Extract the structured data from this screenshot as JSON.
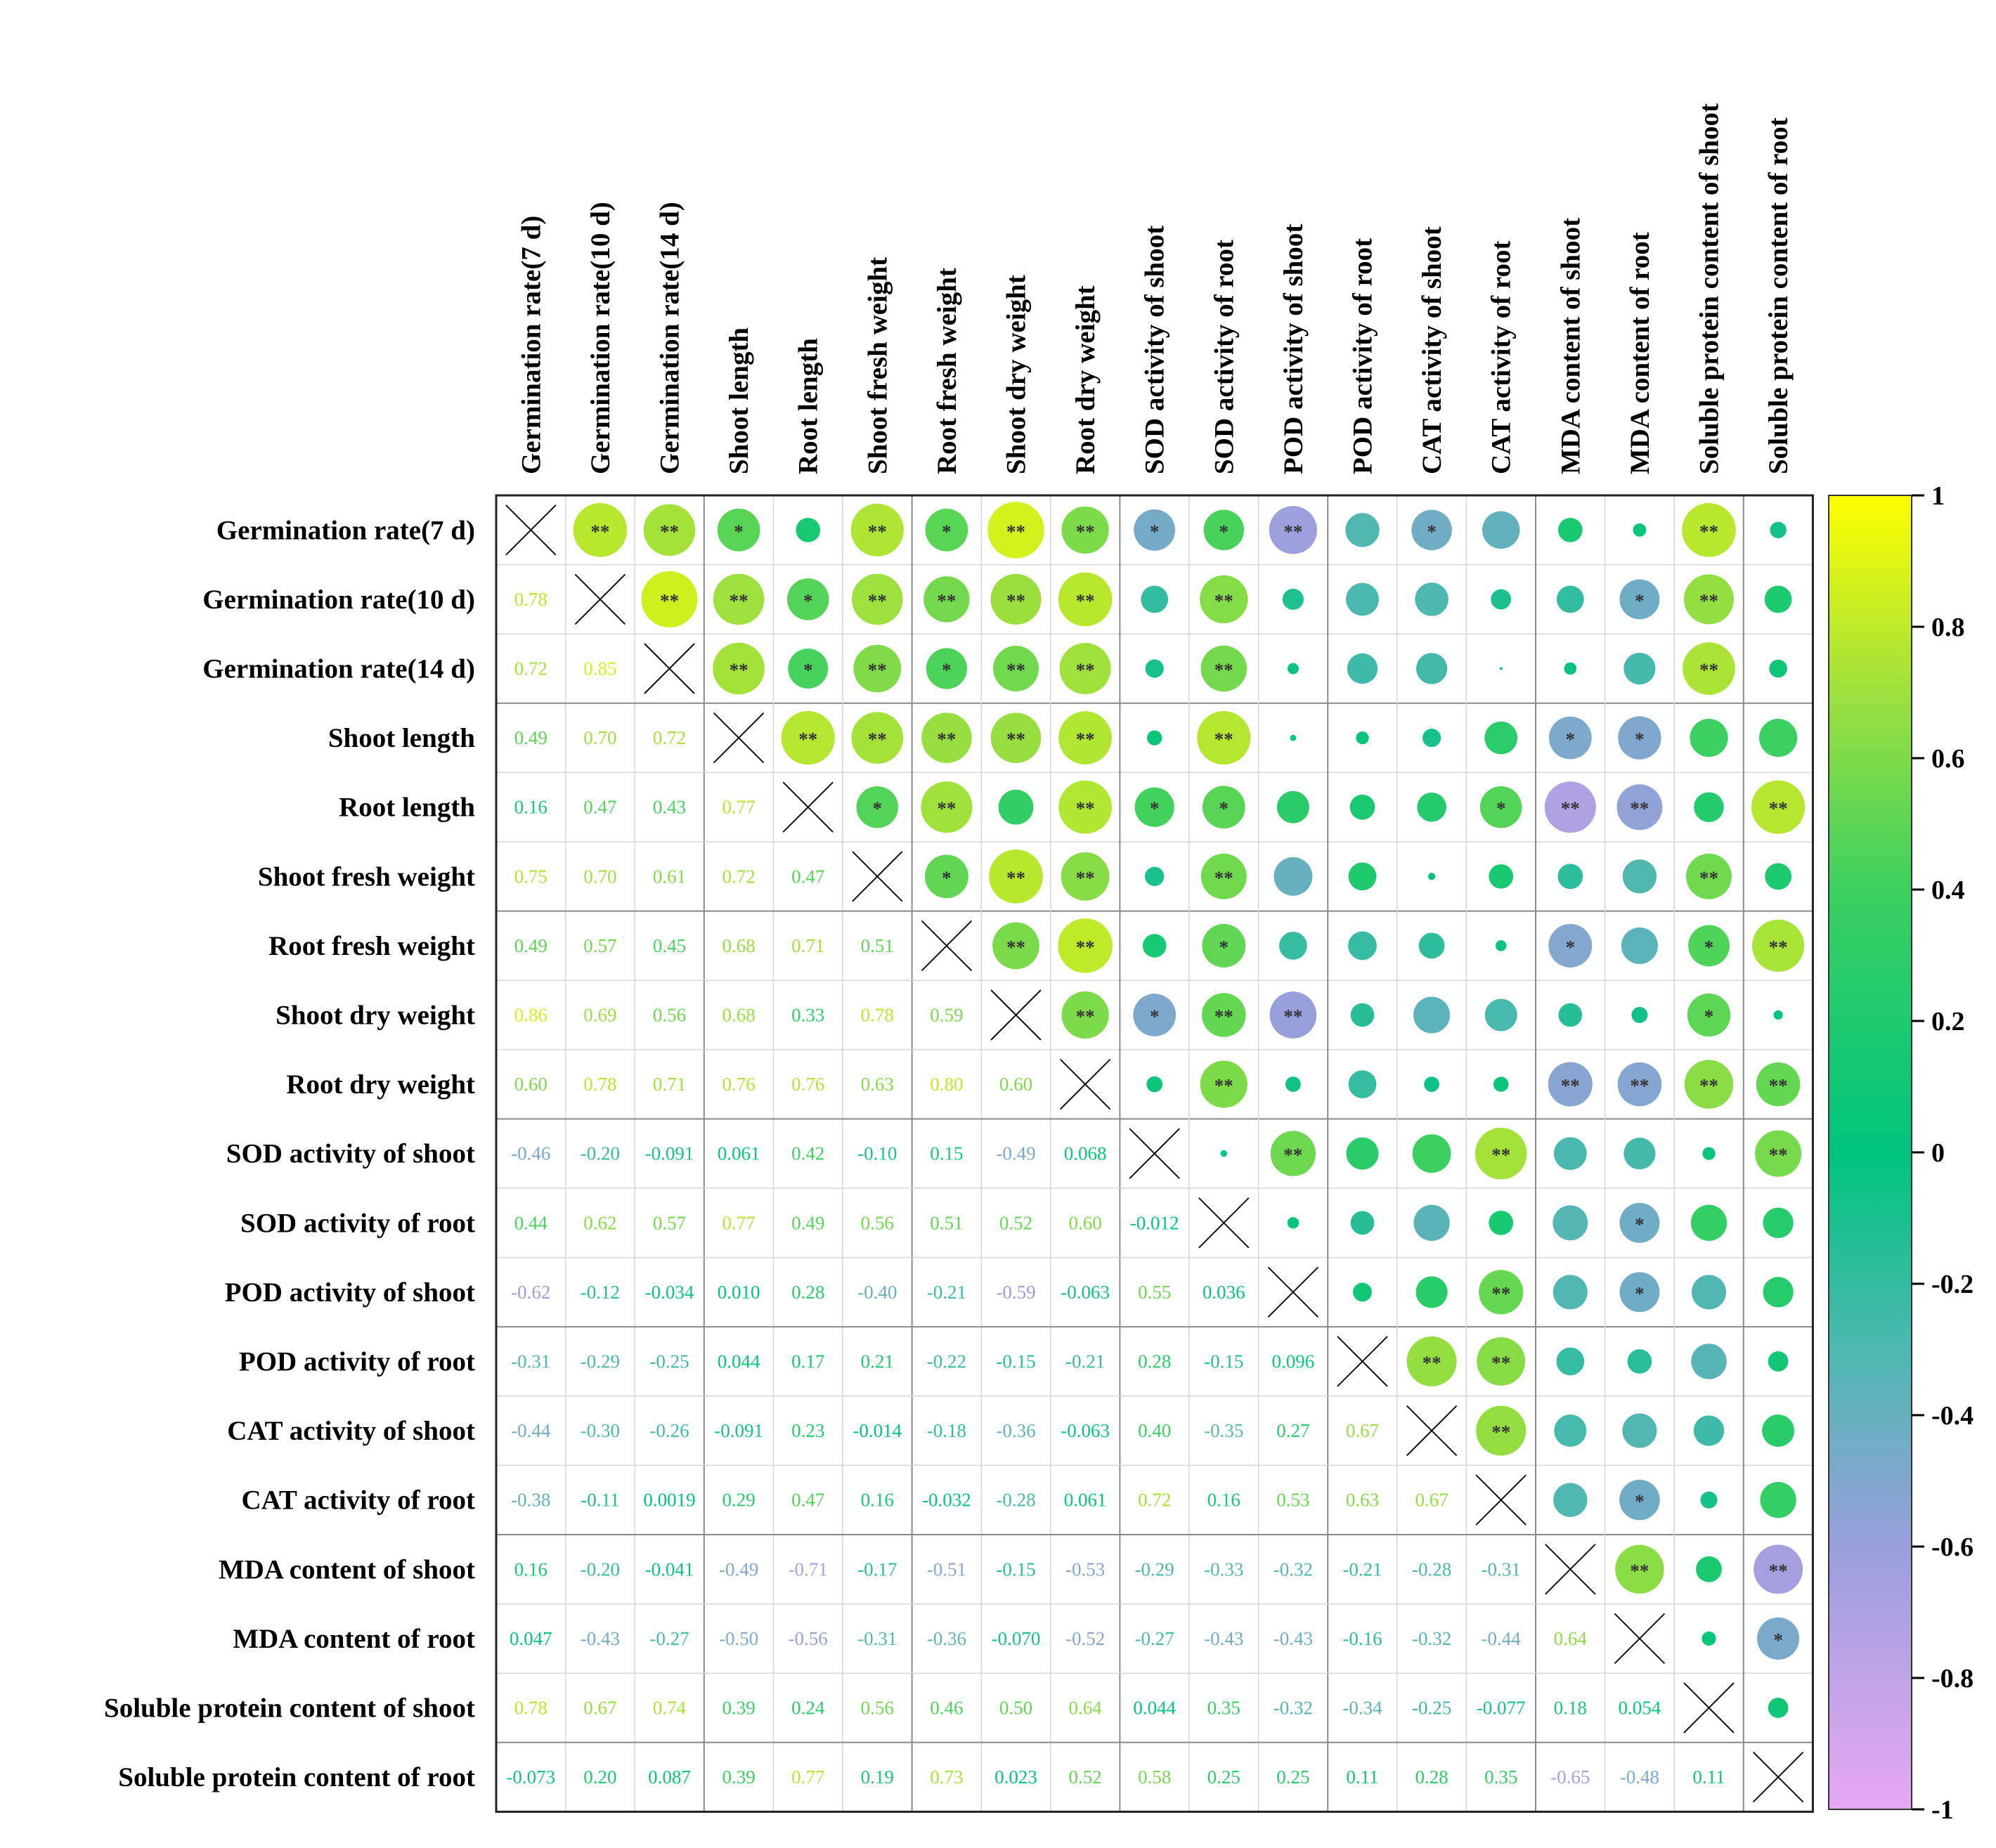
{
  "chart_data": {
    "type": "heatmap",
    "title": "",
    "variables": [
      "Germination rate(7 d)",
      "Germination rate(10 d)",
      "Germination rate(14 d)",
      "Shoot length",
      "Root length",
      "Shoot fresh weight",
      "Root fresh weight",
      "Shoot dry weight",
      "Root dry weight",
      "SOD activity of shoot",
      "SOD activity of root",
      "POD activity of shoot",
      "POD activity of root",
      "CAT activity of shoot",
      "CAT activity of root",
      "MDA content of shoot",
      "MDA content of root",
      "Soluble protein content of shoot",
      "Soluble protein content of root"
    ],
    "lower_labels": [
      [],
      [
        "0.78"
      ],
      [
        "0.72",
        "0.85"
      ],
      [
        "0.49",
        "0.70",
        "0.72"
      ],
      [
        "0.16",
        "0.47",
        "0.43",
        "0.77"
      ],
      [
        "0.75",
        "0.70",
        "0.61",
        "0.72",
        "0.47"
      ],
      [
        "0.49",
        "0.57",
        "0.45",
        "0.68",
        "0.71",
        "0.51"
      ],
      [
        "0.86",
        "0.69",
        "0.56",
        "0.68",
        "0.33",
        "0.78",
        "0.59"
      ],
      [
        "0.60",
        "0.78",
        "0.71",
        "0.76",
        "0.76",
        "0.63",
        "0.80",
        "0.60"
      ],
      [
        "-0.46",
        "-0.20",
        "-0.091",
        "0.061",
        "0.42",
        "-0.10",
        "0.15",
        "-0.49",
        "0.068"
      ],
      [
        "0.44",
        "0.62",
        "0.57",
        "0.77",
        "0.49",
        "0.56",
        "0.51",
        "0.52",
        "0.60",
        "-0.012"
      ],
      [
        "-0.62",
        "-0.12",
        "-0.034",
        "0.010",
        "0.28",
        "-0.40",
        "-0.21",
        "-0.59",
        "-0.063",
        "0.55",
        "0.036"
      ],
      [
        "-0.31",
        "-0.29",
        "-0.25",
        "0.044",
        "0.17",
        "0.21",
        "-0.22",
        "-0.15",
        "-0.21",
        "0.28",
        "-0.15",
        "0.096"
      ],
      [
        "-0.44",
        "-0.30",
        "-0.26",
        "-0.091",
        "0.23",
        "-0.014",
        "-0.18",
        "-0.36",
        "-0.063",
        "0.40",
        "-0.35",
        "0.27",
        "0.67"
      ],
      [
        "-0.38",
        "-0.11",
        "0.0019",
        "0.29",
        "0.47",
        "0.16",
        "-0.032",
        "-0.28",
        "0.061",
        "0.72",
        "0.16",
        "0.53",
        "0.63",
        "0.67"
      ],
      [
        "0.16",
        "-0.20",
        "-0.041",
        "-0.49",
        "-0.71",
        "-0.17",
        "-0.51",
        "-0.15",
        "-0.53",
        "-0.29",
        "-0.33",
        "-0.32",
        "-0.21",
        "-0.28",
        "-0.31"
      ],
      [
        "0.047",
        "-0.43",
        "-0.27",
        "-0.50",
        "-0.56",
        "-0.31",
        "-0.36",
        "-0.070",
        "-0.52",
        "-0.27",
        "-0.43",
        "-0.43",
        "-0.16",
        "-0.32",
        "-0.44",
        "0.64"
      ],
      [
        "0.78",
        "0.67",
        "0.74",
        "0.39",
        "0.24",
        "0.56",
        "0.46",
        "0.50",
        "0.64",
        "0.044",
        "0.35",
        "-0.32",
        "-0.34",
        "-0.25",
        "-0.077",
        "0.18",
        "0.054"
      ],
      [
        "-0.073",
        "0.20",
        "0.087",
        "0.39",
        "0.77",
        "0.19",
        "0.73",
        "0.023",
        "0.52",
        "0.58",
        "0.25",
        "0.25",
        "0.11",
        "0.28",
        "0.35",
        "-0.65",
        "-0.48",
        "0.11"
      ]
    ],
    "significance_upper": [
      [
        "",
        "**",
        "**",
        "*",
        "",
        "**",
        "*",
        "**",
        "**",
        "*",
        "*",
        "**",
        "",
        "*",
        "",
        "",
        "",
        "**",
        ""
      ],
      [
        "",
        "",
        "**",
        "**",
        "*",
        "**",
        "**",
        "**",
        "**",
        "",
        "**",
        "",
        "",
        "",
        "",
        "",
        "*",
        "**",
        ""
      ],
      [
        "",
        "",
        "",
        "**",
        "*",
        "**",
        "*",
        "**",
        "**",
        "",
        "**",
        "",
        "",
        "",
        "",
        "",
        "",
        "**",
        ""
      ],
      [
        "",
        "",
        "",
        "",
        "**",
        "**",
        "**",
        "**",
        "**",
        "",
        "**",
        "",
        "",
        "",
        "",
        "*",
        "*",
        "",
        ""
      ],
      [
        "",
        "",
        "",
        "",
        "",
        "*",
        "**",
        "",
        "**",
        "*",
        "*",
        "",
        "",
        "",
        "*",
        "**",
        "**",
        "",
        "**"
      ],
      [
        "",
        "",
        "",
        "",
        "",
        "",
        "*",
        "**",
        "**",
        "",
        "**",
        "",
        "",
        "",
        "",
        "",
        "",
        "**",
        ""
      ],
      [
        "",
        "",
        "",
        "",
        "",
        "",
        "",
        "**",
        "**",
        "",
        "*",
        "",
        "",
        "",
        "",
        "*",
        "",
        "*",
        "**"
      ],
      [
        "",
        "",
        "",
        "",
        "",
        "",
        "",
        "",
        "**",
        "*",
        "**",
        "**",
        "",
        "",
        "",
        "",
        "",
        "*",
        ""
      ],
      [
        "",
        "",
        "",
        "",
        "",
        "",
        "",
        "",
        "",
        "",
        "**",
        "",
        "",
        "",
        "",
        "**",
        "**",
        "**",
        "**"
      ],
      [
        "",
        "",
        "",
        "",
        "",
        "",
        "",
        "",
        "",
        "",
        "",
        "**",
        "",
        "",
        "**",
        "",
        "",
        "",
        "**"
      ],
      [
        "",
        "",
        "",
        "",
        "",
        "",
        "",
        "",
        "",
        "",
        "",
        "",
        "",
        "",
        "",
        "",
        "*",
        "",
        ""
      ],
      [
        "",
        "",
        "",
        "",
        "",
        "",
        "",
        "",
        "",
        "",
        "",
        "",
        "",
        "",
        "**",
        "",
        "*",
        "",
        ""
      ],
      [
        "",
        "",
        "",
        "",
        "",
        "",
        "",
        "",
        "",
        "",
        "",
        "",
        "",
        "**",
        "**",
        "",
        "",
        "",
        ""
      ],
      [
        "",
        "",
        "",
        "",
        "",
        "",
        "",
        "",
        "",
        "",
        "",
        "",
        "",
        "",
        "**",
        "",
        "",
        "",
        ""
      ],
      [
        "",
        "",
        "",
        "",
        "",
        "",
        "",
        "",
        "",
        "",
        "",
        "",
        "",
        "",
        "",
        "",
        "*",
        "",
        ""
      ],
      [
        "",
        "",
        "",
        "",
        "",
        "",
        "",
        "",
        "",
        "",
        "",
        "",
        "",
        "",
        "",
        "",
        "**",
        "",
        "**"
      ],
      [
        "",
        "",
        "",
        "",
        "",
        "",
        "",
        "",
        "",
        "",
        "",
        "",
        "",
        "",
        "",
        "",
        "",
        "",
        "*"
      ],
      [
        "",
        "",
        "",
        "",
        "",
        "",
        "",
        "",
        "",
        "",
        "",
        "",
        "",
        "",
        "",
        "",
        "",
        "",
        ""
      ],
      [
        "",
        "",
        "",
        "",
        "",
        "",
        "",
        "",
        "",
        "",
        "",
        "",
        "",
        "",
        "",
        "",
        "",
        "",
        ""
      ]
    ],
    "colorbar": {
      "range": [
        -1,
        1
      ],
      "ticks": [
        "1",
        "0.8",
        "0.6",
        "0.4",
        "0.2",
        "0",
        "-0.2",
        "-0.4",
        "-0.6",
        "-0.8",
        "-1"
      ],
      "stops": [
        {
          "v": -1.0,
          "color": "#e6a8f2"
        },
        {
          "v": -0.6,
          "color": "#9a9fdc"
        },
        {
          "v": -0.3,
          "color": "#4db8b0"
        },
        {
          "v": 0.0,
          "color": "#00c47e"
        },
        {
          "v": 0.4,
          "color": "#3cd060"
        },
        {
          "v": 0.7,
          "color": "#9ee03e"
        },
        {
          "v": 1.0,
          "color": "#ffff00"
        }
      ]
    },
    "legend": "right"
  }
}
